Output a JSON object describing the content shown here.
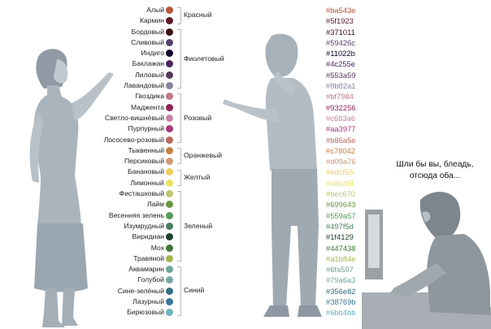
{
  "groups": [
    {
      "label": "Красный",
      "colors": [
        {
          "name": "Алый",
          "hex": "#ba543e"
        },
        {
          "name": "Кармин",
          "hex": "#5f1923"
        }
      ]
    },
    {
      "label": "Фиолетовый",
      "colors": [
        {
          "name": "Бордовый",
          "hex": "#371011"
        },
        {
          "name": "Сливовый",
          "hex": "#59426c"
        },
        {
          "name": "Индиго",
          "hex": "#11022b"
        },
        {
          "name": "Баклажан",
          "hex": "#4c255e"
        },
        {
          "name": "Лиловый",
          "hex": "#553a59"
        },
        {
          "name": "Лавандовый",
          "hex": "#8b82a1"
        }
      ]
    },
    {
      "label": "Розовый",
      "colors": [
        {
          "name": "Гвоздика",
          "hex": "#bf7984"
        },
        {
          "name": "Маджента",
          "hex": "#932256"
        },
        {
          "name": "Светло-вишнёвый",
          "hex": "#c683a6"
        },
        {
          "name": "Пурпурный",
          "hex": "#aa3977"
        },
        {
          "name": "Лососево-розовый",
          "hex": "#b86a5e"
        }
      ]
    },
    {
      "label": "Оранжевый",
      "colors": [
        {
          "name": "Тыквенный",
          "hex": "#c78042"
        },
        {
          "name": "Персиковый",
          "hex": "#d09a76"
        }
      ]
    },
    {
      "label": "Желтый",
      "colors": [
        {
          "name": "Банановый",
          "hex": "#edcf55"
        },
        {
          "name": "Лимонный",
          "hex": "#e8e45f"
        }
      ]
    },
    {
      "label": "Зеленый",
      "colors": [
        {
          "name": "Фисташковый",
          "hex": "#bec670"
        },
        {
          "name": "Лайм",
          "hex": "#699643"
        },
        {
          "name": "Весенняя зелень",
          "hex": "#559a57"
        },
        {
          "name": "Изумрудный",
          "hex": "#497f5d"
        },
        {
          "name": "Виридиан",
          "hex": "#1f4129"
        },
        {
          "name": "Мох",
          "hex": "#447438"
        },
        {
          "name": "Травяной",
          "hex": "#a1b84e"
        }
      ]
    },
    {
      "label": "Синий",
      "colors": [
        {
          "name": "Аквамарин",
          "hex": "#6fa597"
        },
        {
          "name": "Голубой",
          "hex": "#79a6a3"
        },
        {
          "name": "Сине-зелёный",
          "hex": "#356e82"
        },
        {
          "name": "Лазурный",
          "hex": "#38769b"
        },
        {
          "name": "Бирюзовый",
          "hex": "#6bb4bb"
        }
      ]
    }
  ],
  "caption": {
    "line1": "Шли бы вы, блеадь,",
    "line2": "отсюда оба..."
  }
}
